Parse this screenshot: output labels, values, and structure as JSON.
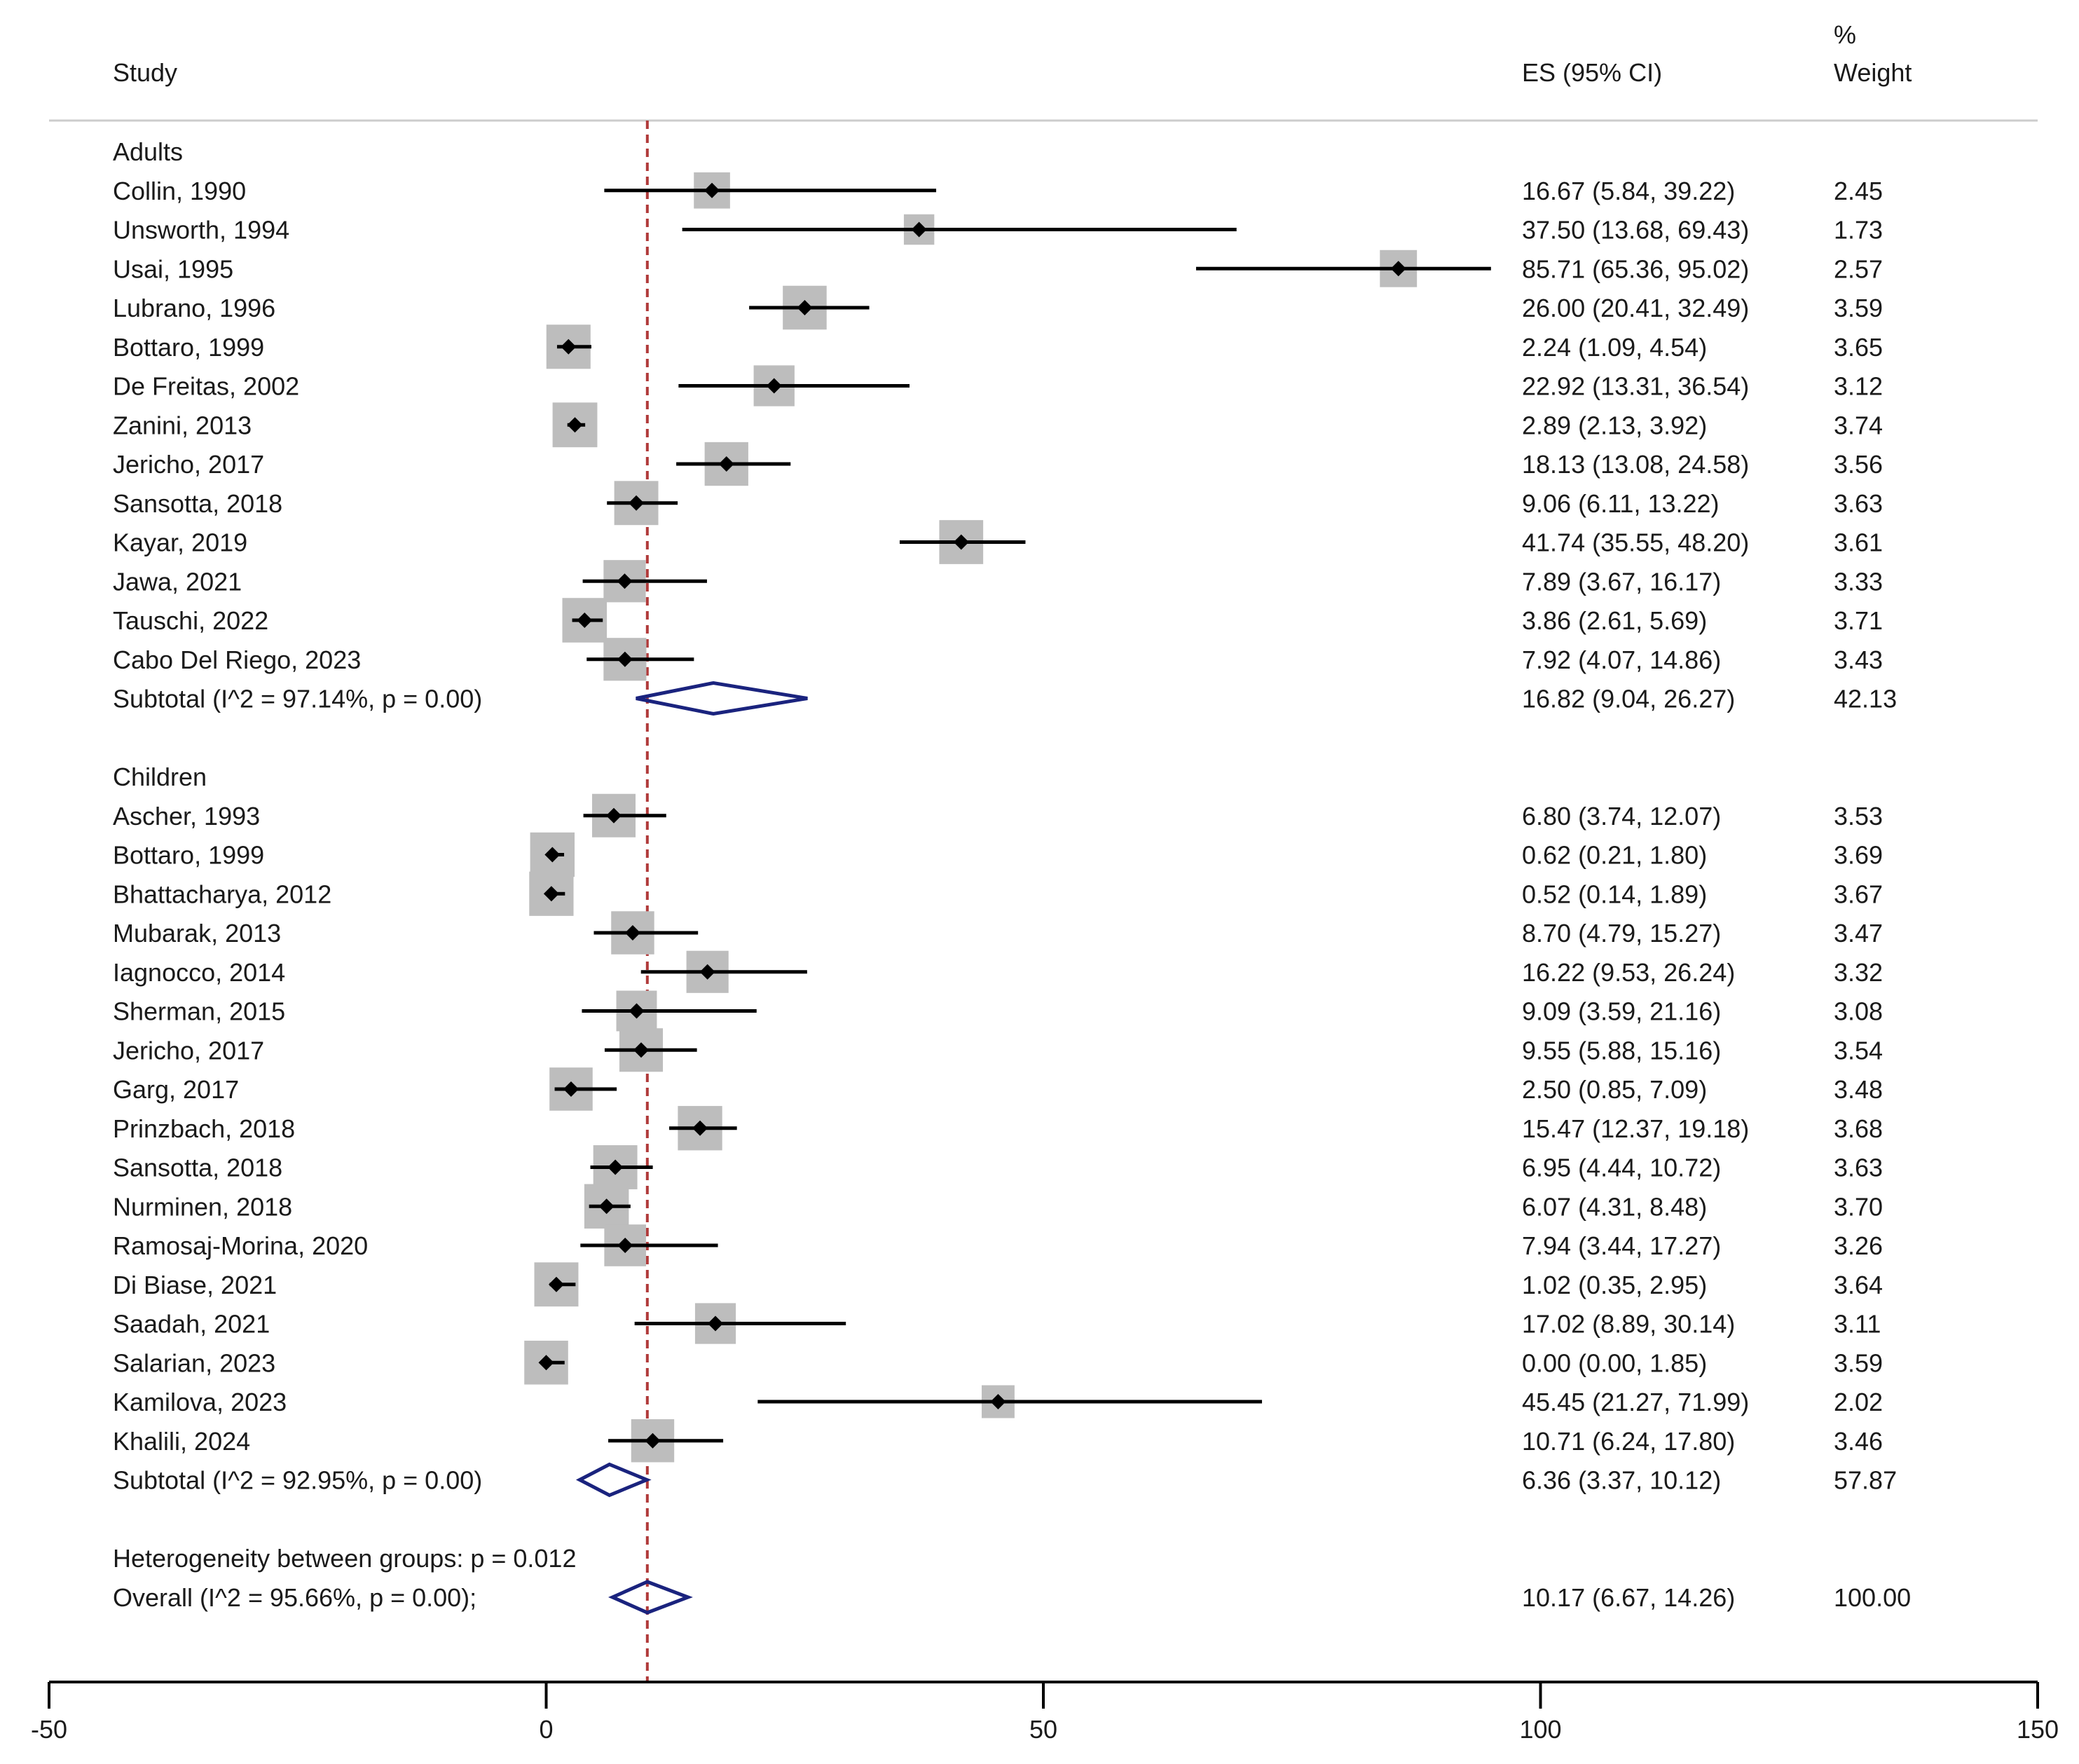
{
  "chart_data": {
    "type": "forest",
    "headers": {
      "study": "Study",
      "es": "ES (95% CI)",
      "weight_line1": "%",
      "weight_line2": "Weight"
    },
    "x_axis": {
      "range": [
        -50,
        150
      ],
      "ticks": [
        -50,
        0,
        50,
        100,
        150
      ],
      "tick_labels": [
        "-50",
        "0",
        "50",
        "100",
        "150"
      ]
    },
    "reference_line": 10.17,
    "groups": [
      {
        "name": "Adults",
        "studies": [
          {
            "label": "Collin, 1990",
            "es": 16.67,
            "lo": 5.84,
            "hi": 39.22,
            "es_text": "16.67 (5.84, 39.22)",
            "weight": "2.45"
          },
          {
            "label": "Unsworth, 1994",
            "es": 37.5,
            "lo": 13.68,
            "hi": 69.43,
            "es_text": "37.50 (13.68, 69.43)",
            "weight": "1.73"
          },
          {
            "label": "Usai, 1995",
            "es": 85.71,
            "lo": 65.36,
            "hi": 95.02,
            "es_text": "85.71 (65.36, 95.02)",
            "weight": "2.57"
          },
          {
            "label": "Lubrano, 1996",
            "es": 26.0,
            "lo": 20.41,
            "hi": 32.49,
            "es_text": "26.00 (20.41, 32.49)",
            "weight": "3.59"
          },
          {
            "label": "Bottaro, 1999",
            "es": 2.24,
            "lo": 1.09,
            "hi": 4.54,
            "es_text": "2.24 (1.09, 4.54)",
            "weight": "3.65"
          },
          {
            "label": "De Freitas, 2002",
            "es": 22.92,
            "lo": 13.31,
            "hi": 36.54,
            "es_text": "22.92 (13.31, 36.54)",
            "weight": "3.12"
          },
          {
            "label": "Zanini, 2013",
            "es": 2.89,
            "lo": 2.13,
            "hi": 3.92,
            "es_text": "2.89 (2.13, 3.92)",
            "weight": "3.74"
          },
          {
            "label": "Jericho, 2017",
            "es": 18.13,
            "lo": 13.08,
            "hi": 24.58,
            "es_text": "18.13 (13.08, 24.58)",
            "weight": "3.56"
          },
          {
            "label": "Sansotta, 2018",
            "es": 9.06,
            "lo": 6.11,
            "hi": 13.22,
            "es_text": "9.06 (6.11, 13.22)",
            "weight": "3.63"
          },
          {
            "label": "Kayar, 2019",
            "es": 41.74,
            "lo": 35.55,
            "hi": 48.2,
            "es_text": "41.74 (35.55, 48.20)",
            "weight": "3.61"
          },
          {
            "label": "Jawa, 2021",
            "es": 7.89,
            "lo": 3.67,
            "hi": 16.17,
            "es_text": "7.89 (3.67, 16.17)",
            "weight": "3.33"
          },
          {
            "label": "Tauschi, 2022",
            "es": 3.86,
            "lo": 2.61,
            "hi": 5.69,
            "es_text": "3.86 (2.61, 5.69)",
            "weight": "3.71"
          },
          {
            "label": "Cabo Del Riego, 2023",
            "es": 7.92,
            "lo": 4.07,
            "hi": 14.86,
            "es_text": "7.92 (4.07, 14.86)",
            "weight": "3.43"
          }
        ],
        "subtotal": {
          "label": "Subtotal  (I^2 = 97.14%, p = 0.00)",
          "es": 16.82,
          "lo": 9.04,
          "hi": 26.27,
          "es_text": "16.82 (9.04, 26.27)",
          "weight": "42.13"
        }
      },
      {
        "name": "Children",
        "studies": [
          {
            "label": "Ascher, 1993",
            "es": 6.8,
            "lo": 3.74,
            "hi": 12.07,
            "es_text": "6.80 (3.74, 12.07)",
            "weight": "3.53"
          },
          {
            "label": "Bottaro, 1999",
            "es": 0.62,
            "lo": 0.21,
            "hi": 1.8,
            "es_text": "0.62 (0.21, 1.80)",
            "weight": "3.69"
          },
          {
            "label": "Bhattacharya, 2012",
            "es": 0.52,
            "lo": 0.14,
            "hi": 1.89,
            "es_text": "0.52 (0.14, 1.89)",
            "weight": "3.67"
          },
          {
            "label": "Mubarak, 2013",
            "es": 8.7,
            "lo": 4.79,
            "hi": 15.27,
            "es_text": "8.70 (4.79, 15.27)",
            "weight": "3.47"
          },
          {
            "label": "Iagnocco, 2014",
            "es": 16.22,
            "lo": 9.53,
            "hi": 26.24,
            "es_text": "16.22 (9.53, 26.24)",
            "weight": "3.32"
          },
          {
            "label": "Sherman, 2015",
            "es": 9.09,
            "lo": 3.59,
            "hi": 21.16,
            "es_text": "9.09 (3.59, 21.16)",
            "weight": "3.08"
          },
          {
            "label": "Jericho, 2017",
            "es": 9.55,
            "lo": 5.88,
            "hi": 15.16,
            "es_text": "9.55 (5.88, 15.16)",
            "weight": "3.54"
          },
          {
            "label": "Garg, 2017",
            "es": 2.5,
            "lo": 0.85,
            "hi": 7.09,
            "es_text": "2.50 (0.85, 7.09)",
            "weight": "3.48"
          },
          {
            "label": "Prinzbach, 2018",
            "es": 15.47,
            "lo": 12.37,
            "hi": 19.18,
            "es_text": "15.47 (12.37, 19.18)",
            "weight": "3.68"
          },
          {
            "label": "Sansotta, 2018",
            "es": 6.95,
            "lo": 4.44,
            "hi": 10.72,
            "es_text": "6.95 (4.44, 10.72)",
            "weight": "3.63"
          },
          {
            "label": "Nurminen, 2018",
            "es": 6.07,
            "lo": 4.31,
            "hi": 8.48,
            "es_text": "6.07 (4.31, 8.48)",
            "weight": "3.70"
          },
          {
            "label": "Ramosaj-Morina, 2020",
            "es": 7.94,
            "lo": 3.44,
            "hi": 17.27,
            "es_text": "7.94 (3.44, 17.27)",
            "weight": "3.26"
          },
          {
            "label": "Di Biase, 2021",
            "es": 1.02,
            "lo": 0.35,
            "hi": 2.95,
            "es_text": "1.02 (0.35, 2.95)",
            "weight": "3.64"
          },
          {
            "label": "Saadah, 2021",
            "es": 17.02,
            "lo": 8.89,
            "hi": 30.14,
            "es_text": "17.02 (8.89, 30.14)",
            "weight": "3.11"
          },
          {
            "label": "Salarian, 2023",
            "es": 0.0,
            "lo": 0.0,
            "hi": 1.85,
            "es_text": "0.00 (0.00, 1.85)",
            "weight": "3.59"
          },
          {
            "label": "Kamilova, 2023",
            "es": 45.45,
            "lo": 21.27,
            "hi": 71.99,
            "es_text": "45.45 (21.27, 71.99)",
            "weight": "2.02"
          },
          {
            "label": "Khalili, 2024",
            "es": 10.71,
            "lo": 6.24,
            "hi": 17.8,
            "es_text": "10.71 (6.24, 17.80)",
            "weight": "3.46"
          }
        ],
        "subtotal": {
          "label": "Subtotal  (I^2 = 92.95%, p = 0.00)",
          "es": 6.36,
          "lo": 3.37,
          "hi": 10.12,
          "es_text": "6.36 (3.37, 10.12)",
          "weight": "57.87"
        }
      }
    ],
    "heterogeneity_text": "Heterogeneity between groups: p = 0.012",
    "overall": {
      "label": "Overall  (I^2 = 95.66%, p = 0.00);",
      "es": 10.17,
      "lo": 6.67,
      "hi": 14.26,
      "es_text": "10.17 (6.67, 14.26)",
      "weight": "100.00"
    },
    "colors": {
      "text": "#1a1a1a",
      "ci_line": "#000000",
      "weight_box": "#bdbdbd",
      "diamond": "#1a237e",
      "reference_line": "#b03a3a",
      "header_rule": "#cccccc"
    }
  }
}
